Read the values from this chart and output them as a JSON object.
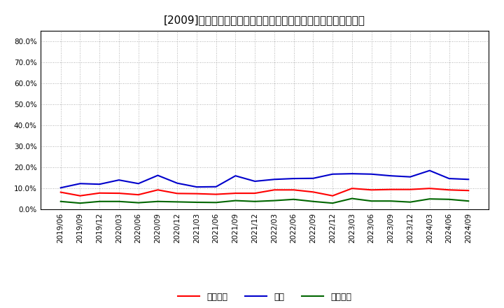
{
  "title": "[2009]　売上債権、在庫、買入債務の総資産に対する比率の推移",
  "dates": [
    "2019/06",
    "2019/09",
    "2019/12",
    "2020/03",
    "2020/06",
    "2020/09",
    "2020/12",
    "2021/03",
    "2021/06",
    "2021/09",
    "2021/12",
    "2022/03",
    "2022/06",
    "2022/09",
    "2022/12",
    "2023/03",
    "2023/06",
    "2023/09",
    "2023/12",
    "2024/03",
    "2024/06",
    "2024/09"
  ],
  "uriage_saiken": [
    0.082,
    0.065,
    0.078,
    0.077,
    0.07,
    0.093,
    0.076,
    0.075,
    0.072,
    0.077,
    0.077,
    0.093,
    0.093,
    0.083,
    0.065,
    0.1,
    0.093,
    0.095,
    0.095,
    0.1,
    0.093,
    0.09
  ],
  "zaiko": [
    0.103,
    0.123,
    0.12,
    0.14,
    0.123,
    0.162,
    0.125,
    0.107,
    0.108,
    0.16,
    0.134,
    0.143,
    0.147,
    0.148,
    0.168,
    0.17,
    0.168,
    0.16,
    0.155,
    0.185,
    0.147,
    0.143
  ],
  "kainyu_saimu": [
    0.038,
    0.03,
    0.038,
    0.038,
    0.032,
    0.038,
    0.036,
    0.034,
    0.033,
    0.042,
    0.038,
    0.042,
    0.048,
    0.038,
    0.03,
    0.052,
    0.04,
    0.04,
    0.035,
    0.05,
    0.048,
    0.04
  ],
  "color_saiken": "#ff0000",
  "color_zaiko": "#0000cc",
  "color_kainyu": "#006600",
  "legend_saiken": "売上債権",
  "legend_zaiko": "在庫",
  "legend_kainyu": "買入債務",
  "ylim": [
    0.0,
    0.85
  ],
  "yticks": [
    0.0,
    0.1,
    0.2,
    0.3,
    0.4,
    0.5,
    0.6,
    0.7,
    0.8
  ],
  "background_color": "#ffffff",
  "grid_color": "#999999",
  "title_fontsize": 11,
  "tick_fontsize": 7.5,
  "legend_fontsize": 9,
  "linewidth": 1.5
}
